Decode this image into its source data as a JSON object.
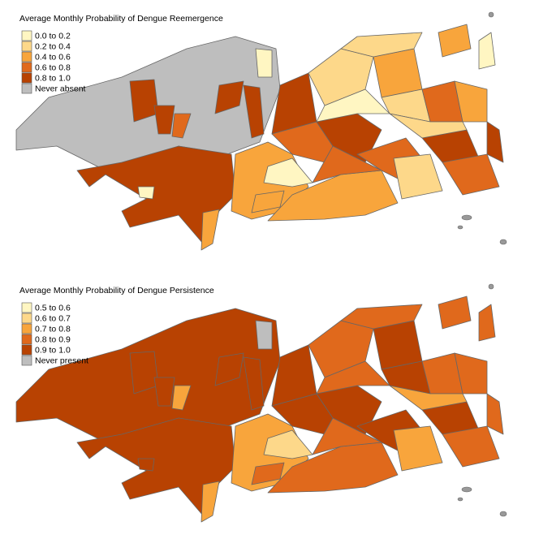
{
  "maps": [
    {
      "title": "Average Monthly Probability of Dengue Reemergence",
      "legend": [
        {
          "label": "0.0 to 0.2",
          "color": "#fff6c2"
        },
        {
          "label": "0.2 to 0.4",
          "color": "#fdd88a"
        },
        {
          "label": "0.4 to 0.6",
          "color": "#f8a53c"
        },
        {
          "label": "0.6 to 0.8",
          "color": "#e0691c"
        },
        {
          "label": "0.8 to 1.0",
          "color": "#b84202"
        },
        {
          "label": "Never absent",
          "color": "#bebebe"
        }
      ]
    },
    {
      "title": "Average Monthly Probability of Dengue Persistence",
      "legend": [
        {
          "label": "0.5 to 0.6",
          "color": "#fff6c2"
        },
        {
          "label": "0.6 to 0.7",
          "color": "#fdd88a"
        },
        {
          "label": "0.7 to 0.8",
          "color": "#f8a53c"
        },
        {
          "label": "0.8 to 0.9",
          "color": "#e0691c"
        },
        {
          "label": "0.9 to 1.0",
          "color": "#b84202"
        },
        {
          "label": "Never present",
          "color": "#bebebe"
        }
      ]
    }
  ]
}
